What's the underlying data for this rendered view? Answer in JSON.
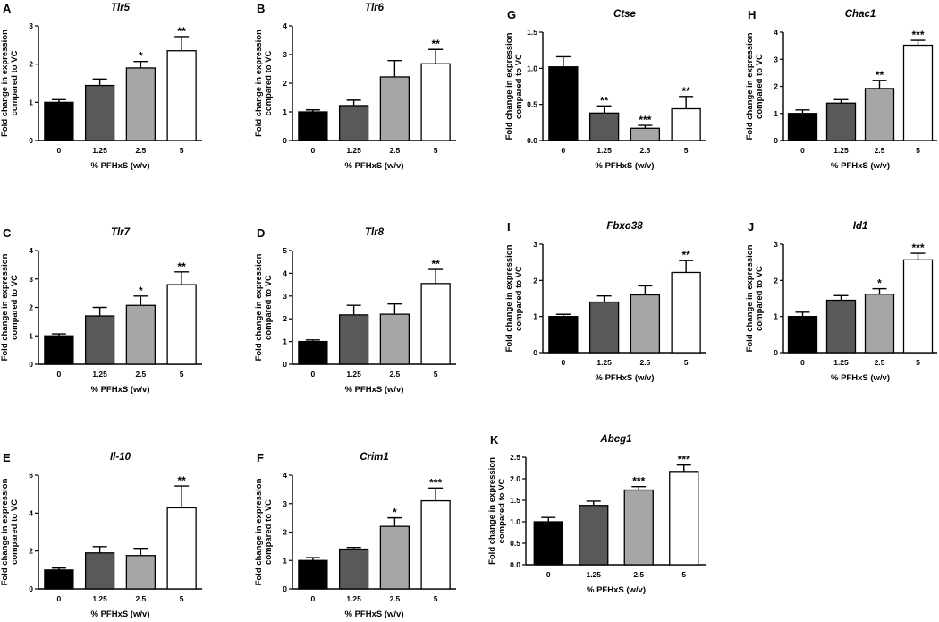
{
  "colors": {
    "0": "#000000",
    "1.25": "#595959",
    "2.5": "#a6a6a6",
    "5": "#ffffff",
    "stroke": "#000000"
  },
  "chart_data": [
    {
      "type": "bar",
      "panel": "A",
      "title": "Tlr5",
      "categories": [
        "0",
        "1.25",
        "2.5",
        "5"
      ],
      "values": [
        1.0,
        1.44,
        1.9,
        2.35
      ],
      "errors": [
        0.07,
        0.17,
        0.17,
        0.37
      ],
      "significance": [
        "",
        "",
        "*",
        "**"
      ],
      "ylim": [
        0,
        3
      ],
      "yticks": [
        0,
        1,
        2,
        3
      ],
      "xlabel": "% PFHxS (w/v)",
      "ylabel": [
        "Fold change in expression",
        "compared to VC"
      ]
    },
    {
      "type": "bar",
      "panel": "B",
      "title": "Tlr6",
      "categories": [
        "0",
        "1.25",
        "2.5",
        "5"
      ],
      "values": [
        1.0,
        1.22,
        2.22,
        2.68
      ],
      "errors": [
        0.07,
        0.19,
        0.57,
        0.5
      ],
      "significance": [
        "",
        "",
        "",
        "**"
      ],
      "ylim": [
        0,
        4
      ],
      "yticks": [
        0,
        1,
        2,
        3,
        4
      ],
      "xlabel": "% PFHxS (w/v)",
      "ylabel": [
        "Fold change in expression",
        "compared to VC"
      ]
    },
    {
      "type": "bar",
      "panel": "C",
      "title": "Tlr7",
      "categories": [
        "0",
        "1.25",
        "2.5",
        "5"
      ],
      "values": [
        1.0,
        1.7,
        2.07,
        2.8
      ],
      "errors": [
        0.07,
        0.3,
        0.33,
        0.45
      ],
      "significance": [
        "",
        "",
        "*",
        "**"
      ],
      "ylim": [
        0,
        4
      ],
      "yticks": [
        0,
        1,
        2,
        3,
        4
      ],
      "xlabel": "% PFHxS (w/v)",
      "ylabel": [
        "Fold change in expression",
        "compared to VC"
      ]
    },
    {
      "type": "bar",
      "panel": "D",
      "title": "Tlr8",
      "categories": [
        "0",
        "1.25",
        "2.5",
        "5"
      ],
      "values": [
        1.0,
        2.17,
        2.2,
        3.55
      ],
      "errors": [
        0.07,
        0.42,
        0.45,
        0.62
      ],
      "significance": [
        "",
        "",
        "",
        "**"
      ],
      "ylim": [
        0,
        5
      ],
      "yticks": [
        0,
        1,
        2,
        3,
        4,
        5
      ],
      "xlabel": "% PFHxS (w/v)",
      "ylabel": [
        "Fold change in expression",
        "compared to VC"
      ]
    },
    {
      "type": "bar",
      "panel": "E",
      "title": "Il-10",
      "categories": [
        "0",
        "1.25",
        "2.5",
        "5"
      ],
      "values": [
        1.0,
        1.9,
        1.76,
        4.28
      ],
      "errors": [
        0.1,
        0.33,
        0.38,
        1.15
      ],
      "significance": [
        "",
        "",
        "",
        "**"
      ],
      "ylim": [
        0,
        6
      ],
      "yticks": [
        0,
        2,
        4,
        6
      ],
      "xlabel": "% PFHxS (w/v)",
      "ylabel": [
        "Fold change in expression",
        "compared to VC"
      ]
    },
    {
      "type": "bar",
      "panel": "F",
      "title": "Crim1",
      "categories": [
        "0",
        "1.25",
        "2.5",
        "5"
      ],
      "values": [
        1.0,
        1.4,
        2.2,
        3.1
      ],
      "errors": [
        0.1,
        0.06,
        0.3,
        0.45
      ],
      "significance": [
        "",
        "",
        "*",
        "***"
      ],
      "ylim": [
        0,
        4
      ],
      "yticks": [
        0,
        1,
        2,
        3,
        4
      ],
      "xlabel": "% PFHxS (w/v)",
      "ylabel": [
        "Fold change in expression",
        "compared to VC"
      ]
    },
    {
      "type": "bar",
      "panel": "G",
      "title": "Ctse",
      "categories": [
        "0",
        "1.25",
        "2.5",
        "5"
      ],
      "values": [
        1.02,
        0.38,
        0.17,
        0.44
      ],
      "errors": [
        0.14,
        0.1,
        0.04,
        0.17
      ],
      "significance": [
        "",
        "**",
        "***",
        "**"
      ],
      "ylim": [
        0,
        1.5
      ],
      "yticks": [
        "0.0",
        "0.5",
        "1.0",
        "1.5"
      ],
      "xlabel": "% PFHxS (w/v)",
      "ylabel": [
        "Fold change in expression",
        "compared to VC"
      ]
    },
    {
      "type": "bar",
      "panel": "H",
      "title": "Chac1",
      "categories": [
        "0",
        "1.25",
        "2.5",
        "5"
      ],
      "values": [
        1.0,
        1.38,
        1.92,
        3.52
      ],
      "errors": [
        0.13,
        0.13,
        0.3,
        0.18
      ],
      "significance": [
        "",
        "",
        "**",
        "***"
      ],
      "ylim": [
        0,
        4
      ],
      "yticks": [
        0,
        1,
        2,
        3,
        4
      ],
      "xlabel": "% PFHxS (w/v)",
      "ylabel": [
        "Fold change in expression",
        "compared to VC"
      ]
    },
    {
      "type": "bar",
      "panel": "I",
      "title": "Fbxo38",
      "categories": [
        "0",
        "1.25",
        "2.5",
        "5"
      ],
      "values": [
        1.0,
        1.4,
        1.6,
        2.22
      ],
      "errors": [
        0.06,
        0.17,
        0.25,
        0.33
      ],
      "significance": [
        "",
        "",
        "",
        "**"
      ],
      "ylim": [
        0,
        3
      ],
      "yticks": [
        0,
        1,
        2,
        3
      ],
      "xlabel": "% PFHxS (w/v)",
      "ylabel": [
        "Fold change in expression",
        "compared to VC"
      ]
    },
    {
      "type": "bar",
      "panel": "J",
      "title": "Id1",
      "categories": [
        "0",
        "1.25",
        "2.5",
        "5"
      ],
      "values": [
        1.0,
        1.45,
        1.62,
        2.57
      ],
      "errors": [
        0.12,
        0.13,
        0.15,
        0.18
      ],
      "significance": [
        "",
        "",
        "*",
        "***"
      ],
      "ylim": [
        0,
        3
      ],
      "yticks": [
        0,
        1,
        2,
        3
      ],
      "xlabel": "% PFHxS (w/v)",
      "ylabel": [
        "Fold change in expression",
        "compared to VC"
      ]
    },
    {
      "type": "bar",
      "panel": "K",
      "title": "Abcg1",
      "categories": [
        "0",
        "1.25",
        "2.5",
        "5"
      ],
      "values": [
        1.0,
        1.38,
        1.74,
        2.17
      ],
      "errors": [
        0.1,
        0.1,
        0.08,
        0.15
      ],
      "significance": [
        "",
        "",
        "***",
        "***"
      ],
      "ylim": [
        0,
        2.5
      ],
      "yticks": [
        "0.0",
        "0.5",
        "1.0",
        "1.5",
        "2.0",
        "2.5"
      ],
      "xlabel": "% PFHxS (w/v)",
      "ylabel": [
        "Fold change in expression",
        "compared to VC"
      ]
    }
  ]
}
